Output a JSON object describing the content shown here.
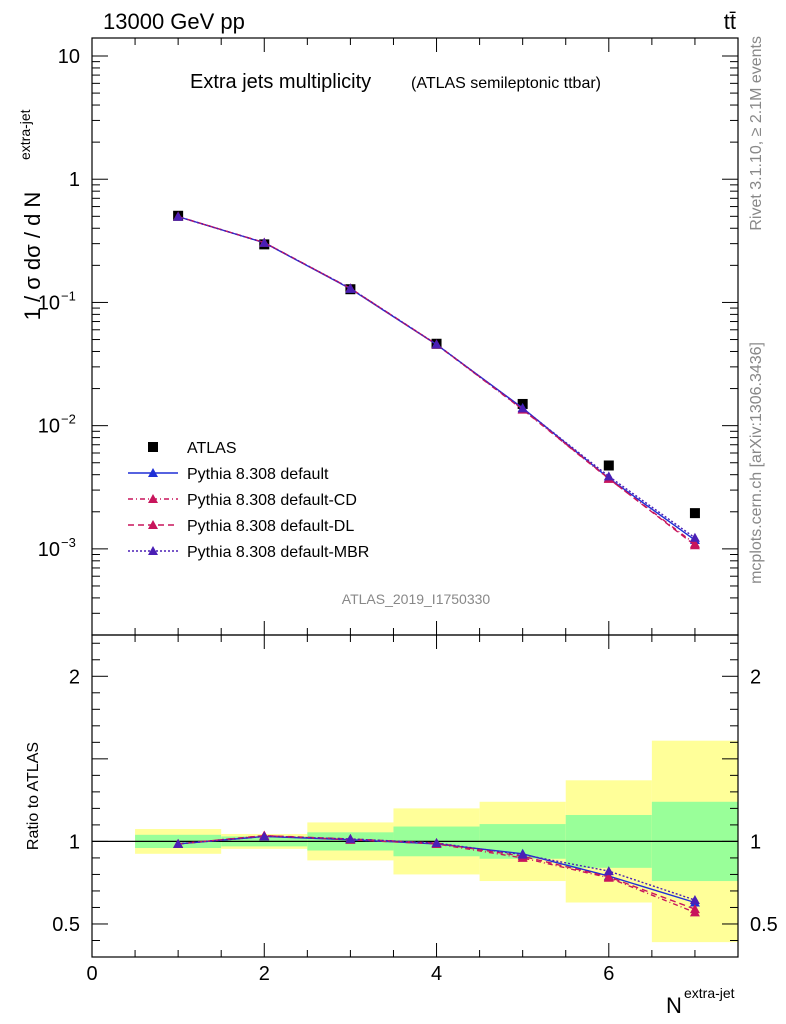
{
  "header": {
    "energy_label": "13000 GeV pp",
    "process_label": "tt̄"
  },
  "titles": {
    "main": "Extra jets multiplicity",
    "sub": "(ATLAS semileptonic ttbar)",
    "analysis_id": "ATLAS_2019_I1750330",
    "side_rivet": "Rivet 3.1.10, ≥ 2.1M events",
    "side_mcplots": "mcplots.cern.ch [arXiv:1306.3436]"
  },
  "axes": {
    "ylabel_main": "1 / σ dσ / d N",
    "ylabel_main_sup": "extra-jet",
    "ylabel_ratio": "Ratio to ATLAS",
    "xlabel": "N",
    "xlabel_sup": "extra-jet"
  },
  "colors": {
    "data": "#000000",
    "default": "#1f2fd6",
    "cd": "#c8155c",
    "dl": "#c8155c",
    "mbr": "#4a1fb5",
    "band_inner": "#99ff99",
    "band_outer": "#ffff99"
  },
  "chart_data": [
    {
      "type": "line",
      "panel": "main",
      "yscale": "log",
      "xlim": [
        0,
        7.5
      ],
      "ylim": [
        0.0002,
        14
      ],
      "x_ticks": [
        0,
        2,
        4,
        6
      ],
      "y_tick_labels": [
        {
          "value": 10,
          "label": "10"
        },
        {
          "value": 1,
          "label": "1"
        },
        {
          "value": 0.1,
          "base": "10",
          "exp": "−1"
        },
        {
          "value": 0.01,
          "base": "10",
          "exp": "−2"
        },
        {
          "value": 0.001,
          "base": "10",
          "exp": "−3"
        }
      ],
      "x": [
        1,
        2,
        3,
        4,
        5,
        6,
        7
      ],
      "series": [
        {
          "name": "ATLAS",
          "key": "data",
          "marker": "square",
          "values": [
            0.505,
            0.296,
            0.128,
            0.0462,
            0.015,
            0.00475,
            0.00195
          ]
        },
        {
          "name": "Pythia 8.308 default",
          "key": "default",
          "dash": "",
          "marker": "triangle",
          "values": [
            0.497,
            0.305,
            0.129,
            0.0455,
            0.0139,
            0.00375,
            0.00118
          ]
        },
        {
          "name": "Pythia 8.308 default-CD",
          "key": "cd",
          "dash": "5,3,1,3",
          "marker": "triangle",
          "values": [
            0.497,
            0.306,
            0.13,
            0.0455,
            0.0135,
            0.0037,
            0.0011
          ]
        },
        {
          "name": "Pythia 8.308 default-DL",
          "key": "dl",
          "dash": "6,4",
          "marker": "triangle",
          "values": [
            0.498,
            0.306,
            0.13,
            0.0457,
            0.0136,
            0.00372,
            0.00107
          ]
        },
        {
          "name": "Pythia 8.308 default-MBR",
          "key": "mbr",
          "dash": "2,2",
          "marker": "triangle",
          "values": [
            0.497,
            0.305,
            0.13,
            0.0457,
            0.0138,
            0.00388,
            0.00123
          ]
        }
      ]
    },
    {
      "type": "line",
      "panel": "ratio",
      "xlim": [
        0,
        7.5
      ],
      "ylim": [
        0.3,
        2.25
      ],
      "x_ticks": [
        0,
        2,
        4,
        6
      ],
      "y_ticks": [
        0.5,
        1,
        2
      ],
      "bins": [
        {
          "lo": 0.5,
          "hi": 1.5,
          "inner": [
            0.96,
            1.04
          ],
          "outer": [
            0.925,
            1.075
          ]
        },
        {
          "lo": 1.5,
          "hi": 2.5,
          "inner": [
            0.97,
            1.03
          ],
          "outer": [
            0.955,
            1.045
          ]
        },
        {
          "lo": 2.5,
          "hi": 3.5,
          "inner": [
            0.945,
            1.055
          ],
          "outer": [
            0.885,
            1.115
          ]
        },
        {
          "lo": 3.5,
          "hi": 4.5,
          "inner": [
            0.91,
            1.09
          ],
          "outer": [
            0.8,
            1.2
          ]
        },
        {
          "lo": 4.5,
          "hi": 5.5,
          "inner": [
            0.895,
            1.105
          ],
          "outer": [
            0.76,
            1.24
          ]
        },
        {
          "lo": 5.5,
          "hi": 6.5,
          "inner": [
            0.84,
            1.16
          ],
          "outer": [
            0.63,
            1.37
          ]
        },
        {
          "lo": 6.5,
          "hi": 7.5,
          "inner": [
            0.76,
            1.24
          ],
          "outer": [
            0.39,
            1.61
          ]
        }
      ],
      "x": [
        1,
        2,
        3,
        4,
        5,
        6,
        7
      ],
      "series": [
        {
          "name": "Pythia 8.308 default",
          "key": "default",
          "dash": "",
          "values": [
            0.985,
            1.03,
            1.01,
            0.985,
            0.925,
            0.79,
            0.63
          ]
        },
        {
          "name": "Pythia 8.308 default-CD",
          "key": "cd",
          "dash": "5,3,1,3",
          "values": [
            0.985,
            1.035,
            1.01,
            0.985,
            0.9,
            0.78,
            0.57
          ]
        },
        {
          "name": "Pythia 8.308 default-DL",
          "key": "dl",
          "dash": "6,4",
          "values": [
            0.985,
            1.035,
            1.015,
            0.99,
            0.91,
            0.785,
            0.59
          ]
        },
        {
          "name": "Pythia 8.308 default-MBR",
          "key": "mbr",
          "dash": "2,2",
          "values": [
            0.985,
            1.03,
            1.015,
            0.99,
            0.92,
            0.82,
            0.645
          ]
        }
      ]
    }
  ]
}
